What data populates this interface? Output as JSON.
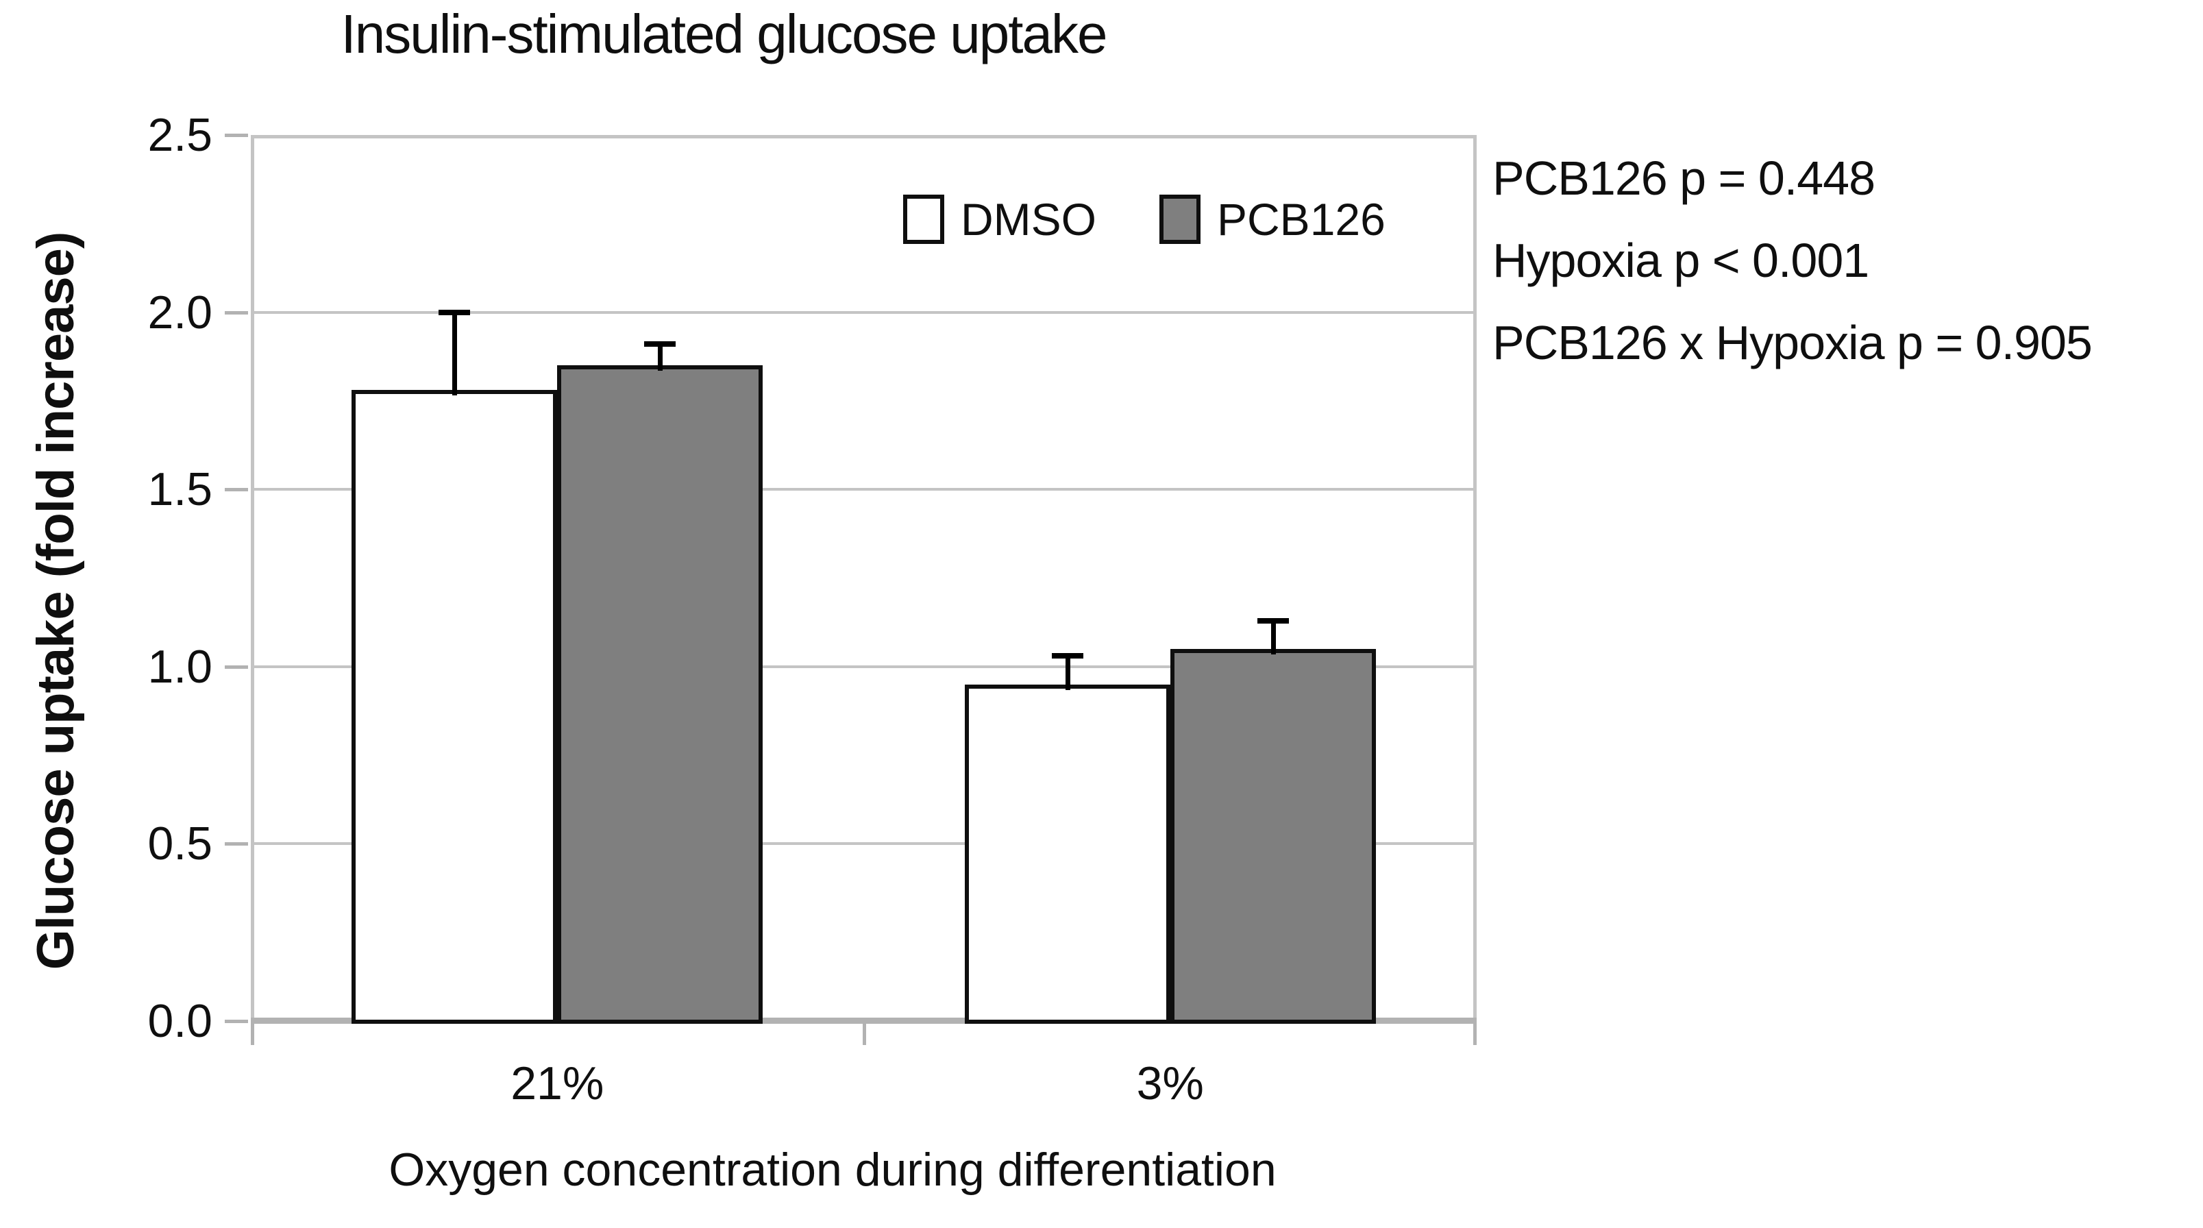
{
  "chart_data": {
    "type": "bar",
    "title": "Insulin-stimulated glucose uptake",
    "xlabel": "Oxygen concentration during differentiation",
    "ylabel": "Glucose uptake (fold increase)",
    "categories": [
      "21%",
      "3%"
    ],
    "series": [
      {
        "name": "DMSO",
        "fill": "#ffffff",
        "values": [
          1.78,
          0.95
        ],
        "errors": [
          0.22,
          0.08
        ]
      },
      {
        "name": "PCB126",
        "fill": "#7f7f7f",
        "values": [
          1.85,
          1.05
        ],
        "errors": [
          0.06,
          0.08
        ]
      }
    ],
    "ylim": [
      0,
      2.5
    ],
    "ytick_step": 0.5,
    "ytick_labels": [
      "0.0",
      "0.5",
      "1.0",
      "1.5",
      "2.0",
      "2.5"
    ],
    "grid": true,
    "legend_position": "top-inside",
    "annotations": [
      "PCB126 p = 0.448",
      "Hypoxia p < 0.001",
      "PCB126 x Hypoxia p = 0.905"
    ],
    "colors": {
      "bar_border": "#0f0f0f",
      "gridline": "#c4c4c4",
      "axis_line": "#b2b2b2",
      "error_bar": "#000000",
      "gray_series_fill": "#7f7f7f",
      "white_series_fill": "#ffffff",
      "text": "#0f0f0f"
    }
  }
}
